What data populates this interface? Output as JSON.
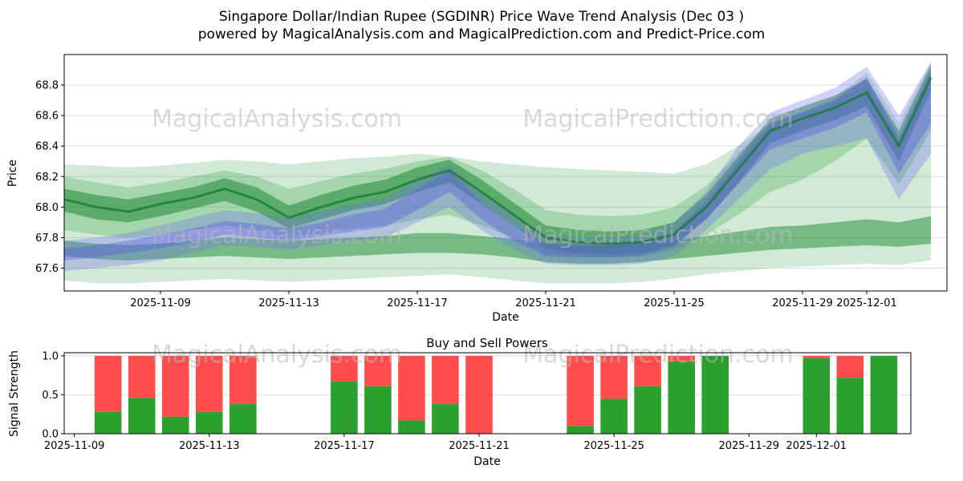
{
  "title": {
    "line1": "Singapore Dollar/Indian Rupee (SGDINR) Price Wave Trend Analysis (Dec 03 )",
    "line2": "powered by MagicalAnalysis.com and MagicalPrediction.com and Predict-Price.com"
  },
  "watermarks": {
    "left": "MagicalAnalysis.com",
    "right": "MagicalPrediction.com"
  },
  "chart_data": [
    {
      "type": "area",
      "title": "Singapore Dollar/Indian Rupee (SGDINR) Price Wave Trend Analysis (Dec 03 )",
      "xlabel": "Date",
      "ylabel": "Price",
      "ylim": [
        67.45,
        69.0
      ],
      "yticks": [
        67.6,
        67.8,
        68.0,
        68.2,
        68.4,
        68.6,
        68.8
      ],
      "xticks": [
        "2025-11-09",
        "2025-11-13",
        "2025-11-17",
        "2025-11-21",
        "2025-11-25",
        "2025-11-29",
        "2025-12-01"
      ],
      "grid": "horizontal",
      "x_dates": [
        "2025-11-06",
        "2025-11-07",
        "2025-11-08",
        "2025-11-09",
        "2025-11-10",
        "2025-11-11",
        "2025-11-12",
        "2025-11-13",
        "2025-11-14",
        "2025-11-15",
        "2025-11-16",
        "2025-11-17",
        "2025-11-18",
        "2025-11-19",
        "2025-11-20",
        "2025-11-21",
        "2025-11-22",
        "2025-11-23",
        "2025-11-24",
        "2025-11-25",
        "2025-11-26",
        "2025-11-27",
        "2025-11-28",
        "2025-11-29",
        "2025-11-30",
        "2025-12-01",
        "2025-12-02",
        "2025-12-03"
      ],
      "series": [
        {
          "name": "green-band-outer",
          "kind": "band",
          "color": "#2e9e44",
          "opacity": 0.22,
          "lower": [
            67.52,
            67.5,
            67.5,
            67.51,
            67.52,
            67.53,
            67.52,
            67.51,
            67.52,
            67.53,
            67.54,
            67.55,
            67.56,
            67.54,
            67.52,
            67.5,
            67.5,
            67.5,
            67.51,
            67.53,
            67.56,
            67.58,
            67.6,
            67.61,
            67.62,
            67.63,
            67.62,
            67.65
          ],
          "upper": [
            68.28,
            68.27,
            68.26,
            68.27,
            68.29,
            68.31,
            68.3,
            68.28,
            68.3,
            68.32,
            68.33,
            68.35,
            68.33,
            68.3,
            68.28,
            68.26,
            68.25,
            68.24,
            68.23,
            68.22,
            68.28,
            68.4,
            68.55,
            68.62,
            68.72,
            68.88,
            68.55,
            68.95
          ]
        },
        {
          "name": "green-band-mid",
          "kind": "band",
          "color": "#2e9e44",
          "opacity": 0.28,
          "lower": [
            67.85,
            67.82,
            67.8,
            67.82,
            67.85,
            67.88,
            67.85,
            67.8,
            67.83,
            67.86,
            67.88,
            67.92,
            67.95,
            67.88,
            67.8,
            67.7,
            67.68,
            67.67,
            67.68,
            67.72,
            67.82,
            67.95,
            68.1,
            68.18,
            68.3,
            68.45,
            68.15,
            68.5
          ],
          "upper": [
            68.2,
            68.16,
            68.13,
            68.16,
            68.2,
            68.24,
            68.2,
            68.12,
            68.17,
            68.22,
            68.25,
            68.3,
            68.33,
            68.24,
            68.12,
            67.98,
            67.95,
            67.94,
            67.95,
            68.0,
            68.14,
            68.35,
            68.55,
            68.62,
            68.7,
            68.8,
            68.45,
            68.88
          ]
        },
        {
          "name": "green-band-core",
          "kind": "band",
          "color": "#1f8a35",
          "opacity": 0.55,
          "lower": [
            67.97,
            67.92,
            67.9,
            67.94,
            67.99,
            68.04,
            67.97,
            67.86,
            67.92,
            67.98,
            68.02,
            68.1,
            68.16,
            68.02,
            67.88,
            67.73,
            67.7,
            67.69,
            67.7,
            67.75,
            67.92,
            68.16,
            68.42,
            68.5,
            68.57,
            68.66,
            68.3,
            68.76
          ],
          "upper": [
            68.12,
            68.08,
            68.05,
            68.09,
            68.13,
            68.19,
            68.13,
            68.01,
            68.08,
            68.14,
            68.18,
            68.26,
            68.31,
            68.18,
            68.03,
            67.88,
            67.85,
            67.84,
            67.85,
            67.9,
            68.08,
            68.33,
            68.58,
            68.66,
            68.73,
            68.84,
            68.5,
            68.93
          ]
        },
        {
          "name": "green-band-low",
          "kind": "band",
          "color": "#1f8a35",
          "opacity": 0.5,
          "lower": [
            67.68,
            67.66,
            67.65,
            67.66,
            67.67,
            67.68,
            67.67,
            67.66,
            67.67,
            67.68,
            67.69,
            67.7,
            67.7,
            67.69,
            67.67,
            67.64,
            67.63,
            67.63,
            67.64,
            67.66,
            67.68,
            67.7,
            67.72,
            67.73,
            67.74,
            67.75,
            67.74,
            67.76
          ],
          "upper": [
            67.78,
            67.76,
            67.75,
            67.76,
            67.78,
            67.8,
            67.79,
            67.78,
            67.79,
            67.8,
            67.81,
            67.83,
            67.83,
            67.81,
            67.79,
            67.76,
            67.75,
            67.75,
            67.76,
            67.78,
            67.81,
            67.84,
            67.87,
            67.88,
            67.9,
            67.92,
            67.9,
            67.94
          ]
        },
        {
          "name": "blue-band-wide",
          "kind": "band",
          "color": "#7070f0",
          "opacity": 0.32,
          "lower": [
            67.58,
            67.6,
            67.62,
            67.65,
            67.7,
            67.75,
            67.74,
            67.72,
            67.75,
            67.78,
            67.8,
            67.9,
            68.0,
            67.85,
            67.72,
            67.63,
            67.62,
            67.62,
            67.63,
            67.68,
            67.85,
            68.05,
            68.25,
            68.35,
            68.4,
            68.45,
            68.05,
            68.35
          ],
          "upper": [
            67.78,
            67.8,
            67.83,
            67.88,
            67.93,
            67.98,
            67.96,
            67.93,
            67.97,
            68.02,
            68.06,
            68.18,
            68.28,
            68.1,
            67.95,
            67.82,
            67.8,
            67.8,
            67.82,
            67.9,
            68.1,
            68.4,
            68.62,
            68.7,
            68.78,
            68.92,
            68.6,
            68.95
          ]
        },
        {
          "name": "blue-band-core",
          "kind": "band",
          "color": "#5858e8",
          "opacity": 0.38,
          "lower": [
            67.65,
            67.67,
            67.7,
            67.73,
            67.77,
            67.82,
            67.8,
            67.78,
            67.81,
            67.84,
            67.87,
            67.98,
            68.1,
            67.92,
            67.78,
            67.68,
            67.67,
            67.67,
            67.68,
            67.74,
            67.92,
            68.15,
            68.38,
            68.45,
            68.52,
            68.62,
            68.22,
            68.55
          ],
          "upper": [
            67.73,
            67.75,
            67.78,
            67.82,
            67.86,
            67.91,
            67.89,
            67.86,
            67.9,
            67.95,
            67.99,
            68.12,
            68.24,
            68.03,
            67.88,
            67.76,
            67.75,
            67.75,
            67.77,
            67.84,
            68.04,
            68.3,
            68.55,
            68.62,
            68.7,
            68.85,
            68.45,
            68.9
          ]
        },
        {
          "name": "trend",
          "kind": "line",
          "color": "#157a2e",
          "width": 3,
          "opacity": 0.75,
          "values": [
            68.05,
            68.0,
            67.97,
            68.02,
            68.06,
            68.12,
            68.05,
            67.93,
            68.0,
            68.06,
            68.1,
            68.18,
            68.24,
            68.1,
            67.95,
            67.8,
            67.77,
            67.76,
            67.77,
            67.82,
            68.0,
            68.25,
            68.5,
            68.58,
            68.65,
            68.75,
            68.4,
            68.85
          ]
        }
      ]
    },
    {
      "type": "bar",
      "title": "Buy and Sell Powers",
      "xlabel": "Date",
      "ylabel": "Signal Strength",
      "ylim": [
        0,
        1.04
      ],
      "yticks": [
        0.0,
        0.5,
        1.0
      ],
      "xticks": [
        "2025-11-09",
        "2025-11-13",
        "2025-11-17",
        "2025-11-21",
        "2025-11-25",
        "2025-11-29",
        "2025-12-01"
      ],
      "colors": {
        "buy": "#2ca02c",
        "sell": "#ff4d4d"
      },
      "bars": [
        {
          "date": "2025-11-10",
          "buy": 0.28,
          "sell": 0.72
        },
        {
          "date": "2025-11-11",
          "buy": 0.46,
          "sell": 0.54
        },
        {
          "date": "2025-11-12",
          "buy": 0.22,
          "sell": 0.78
        },
        {
          "date": "2025-11-13",
          "buy": 0.28,
          "sell": 0.72
        },
        {
          "date": "2025-11-14",
          "buy": 0.38,
          "sell": 0.62
        },
        {
          "date": "2025-11-17",
          "buy": 0.67,
          "sell": 0.33
        },
        {
          "date": "2025-11-18",
          "buy": 0.61,
          "sell": 0.39
        },
        {
          "date": "2025-11-19",
          "buy": 0.17,
          "sell": 0.83
        },
        {
          "date": "2025-11-20",
          "buy": 0.38,
          "sell": 0.62
        },
        {
          "date": "2025-11-21",
          "buy": 0.0,
          "sell": 1.0
        },
        {
          "date": "2025-11-24",
          "buy": 0.1,
          "sell": 0.9
        },
        {
          "date": "2025-11-25",
          "buy": 0.45,
          "sell": 0.55
        },
        {
          "date": "2025-11-26",
          "buy": 0.61,
          "sell": 0.39
        },
        {
          "date": "2025-11-27",
          "buy": 0.93,
          "sell": 0.07
        },
        {
          "date": "2025-11-28",
          "buy": 1.0,
          "sell": 0.0
        },
        {
          "date": "2025-12-01",
          "buy": 0.97,
          "sell": 0.03
        },
        {
          "date": "2025-12-02",
          "buy": 0.72,
          "sell": 0.28
        },
        {
          "date": "2025-12-03",
          "buy": 1.0,
          "sell": 0.0
        }
      ]
    }
  ]
}
